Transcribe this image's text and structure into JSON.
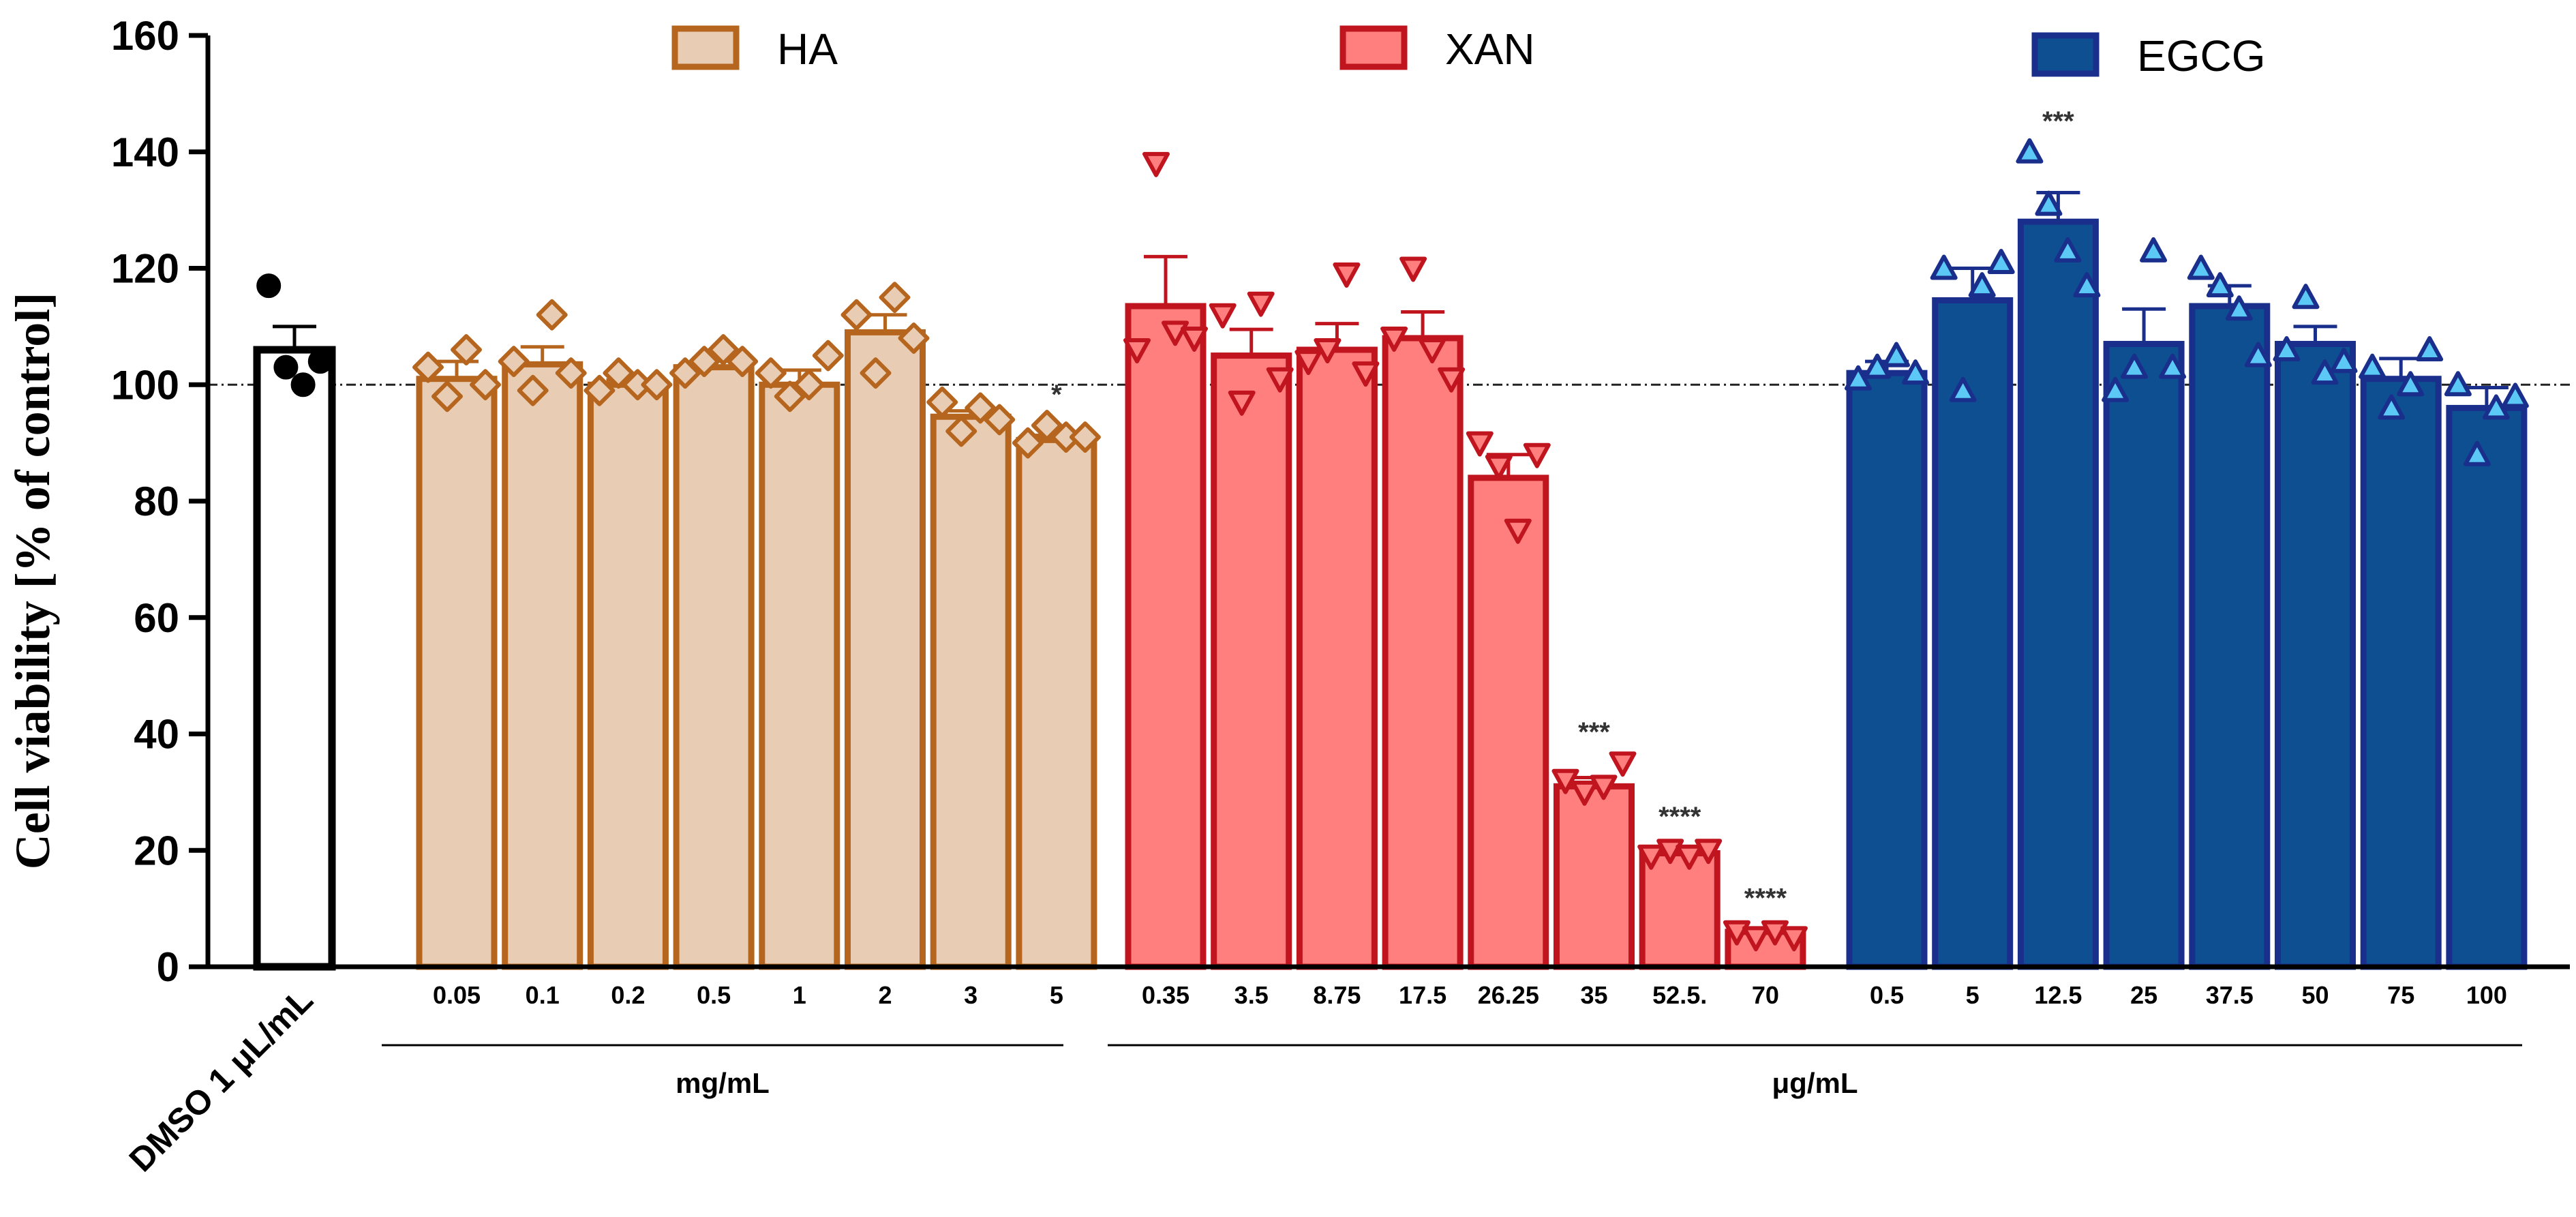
{
  "chart_data": {
    "type": "bar",
    "ylabel": "Cell viability [% of control]",
    "ylim": [
      0,
      160
    ],
    "yticks": [
      0,
      20,
      40,
      60,
      80,
      100,
      120,
      140,
      160
    ],
    "reference_line": 100,
    "control": {
      "name": "DMSO",
      "label": "DMSO 1 μL/mL",
      "mean": 106,
      "err": 4,
      "points": [
        117,
        103,
        100,
        104
      ],
      "fill": "#ffffff",
      "stroke": "#000000"
    },
    "series": [
      {
        "name": "HA",
        "unit": "mg/mL",
        "marker": "diamond",
        "fill": "#e8cdb4",
        "stroke": "#b5651d",
        "categories": [
          "0.05",
          "0.1",
          "0.2",
          "0.5",
          "1",
          "2",
          "3",
          "5"
        ],
        "values": [
          101,
          103.5,
          100,
          103,
          100,
          109,
          94.5,
          90.5
        ],
        "errors": [
          3,
          3,
          0.8,
          1.5,
          2.5,
          3,
          1,
          0.8
        ],
        "points": [
          [
            103,
            98,
            106,
            100
          ],
          [
            104,
            99,
            112,
            102
          ],
          [
            99,
            102,
            100,
            100
          ],
          [
            102,
            104,
            106,
            104
          ],
          [
            102,
            98,
            100,
            105
          ],
          [
            112,
            102,
            115,
            108
          ],
          [
            97,
            92,
            96,
            94
          ],
          [
            90,
            93,
            91,
            91
          ]
        ],
        "significance": [
          "",
          "",
          "",
          "",
          "",
          "",
          "",
          "*"
        ]
      },
      {
        "name": "XAN",
        "unit": "μg/mL",
        "marker": "triangle-down",
        "fill": "#ff7f7f",
        "stroke": "#c0141e",
        "categories": [
          "0.35",
          "3.5",
          "8.75",
          "17.5",
          "26.25",
          "35",
          "52.5.",
          "70"
        ],
        "values": [
          113.5,
          105,
          106,
          108,
          84,
          31,
          19.5,
          6
        ],
        "errors": [
          8.5,
          4.5,
          4.5,
          4.5,
          4,
          1.5,
          1,
          0.5
        ],
        "points": [
          [
            106,
            138,
            109,
            108
          ],
          [
            112,
            97,
            114,
            101
          ],
          [
            104,
            106,
            119,
            102
          ],
          [
            108,
            120,
            106,
            101
          ],
          [
            90,
            86,
            75,
            88
          ],
          [
            32,
            30,
            31,
            35
          ],
          [
            19,
            20,
            19,
            20
          ],
          [
            6,
            5,
            6,
            5
          ]
        ],
        "significance": [
          "",
          "",
          "",
          "",
          "",
          "***",
          "****",
          "****"
        ]
      },
      {
        "name": "EGCG",
        "unit": "μg/mL",
        "marker": "triangle-up",
        "fill": "#0d4f90",
        "stroke": "#1a2f8c",
        "marker_fill": "#5bc8f5",
        "categories": [
          "0.5",
          "5",
          "12.5",
          "25",
          "37.5",
          "50",
          "75",
          "100"
        ],
        "values": [
          102,
          114.5,
          128,
          107,
          113.5,
          107,
          101,
          96
        ],
        "errors": [
          2,
          5.5,
          5,
          6,
          3.5,
          3,
          3.5,
          3.5
        ],
        "points": [
          [
            101,
            103,
            105,
            102
          ],
          [
            120,
            99,
            117,
            121
          ],
          [
            140,
            131,
            123,
            117
          ],
          [
            99,
            103,
            123,
            103
          ],
          [
            120,
            117,
            113,
            105
          ],
          [
            106,
            115,
            102,
            104
          ],
          [
            103,
            96,
            100,
            106
          ],
          [
            100,
            88,
            96,
            98
          ]
        ],
        "significance": [
          "",
          "",
          "***",
          "",
          "",
          "",
          "",
          ""
        ]
      }
    ]
  }
}
